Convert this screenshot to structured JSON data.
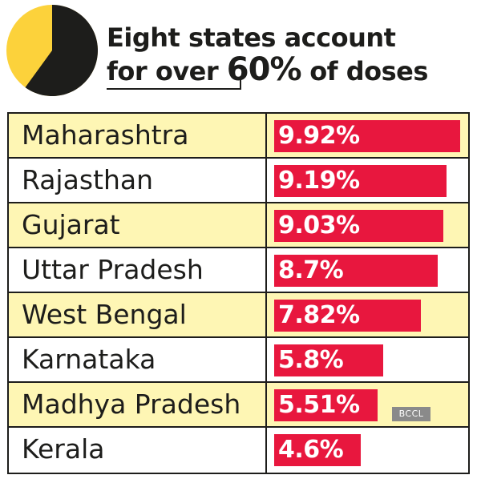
{
  "header": {
    "line1": "Eight states account",
    "line2_prefix": "for over ",
    "line2_big": "60%",
    "line2_suffix": " of doses"
  },
  "colors": {
    "pie_dark": "#1d1d1b",
    "pie_yellow": "#fcd23b",
    "bar": "#e8173e",
    "row_alt": "#fef6b4",
    "text": "#1d1d1b"
  },
  "credit": "BCCL",
  "chart_data": {
    "type": "bar",
    "orientation": "horizontal",
    "title": "Eight states account for over 60% of doses",
    "categories": [
      "Maharashtra",
      "Rajasthan",
      "Gujarat",
      "Uttar Pradesh",
      "West Bengal",
      "Karnataka",
      "Madhya Pradesh",
      "Kerala"
    ],
    "values": [
      9.92,
      9.19,
      9.03,
      8.7,
      7.82,
      5.8,
      5.51,
      4.6
    ],
    "labels": [
      "9.92%",
      "9.19%",
      "9.03%",
      "8.7%",
      "7.82%",
      "5.8%",
      "5.51%",
      "4.6%"
    ],
    "pie": {
      "share_dark": 60,
      "share_light": 40
    },
    "grid": false,
    "legend": "none"
  }
}
